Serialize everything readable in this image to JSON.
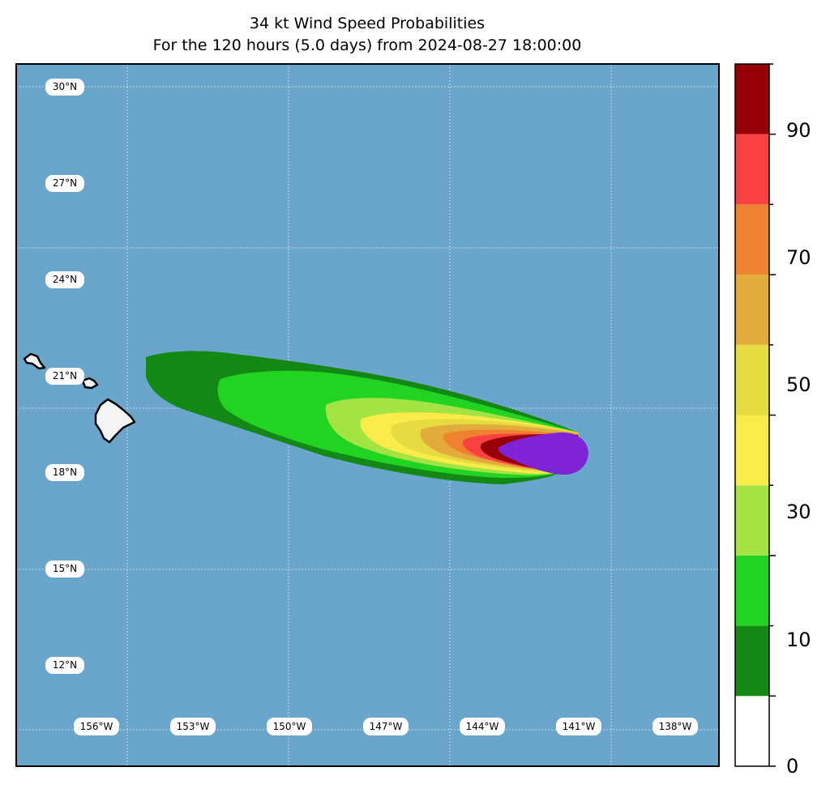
{
  "title_line1": "34 kt Wind Speed Probabilities",
  "title_line2": "For the 120 hours (5.0 days) from 2024-08-27 18:00:00",
  "map": {
    "ocean_color": "#6aa6cc",
    "land_color": "#f2f4f6",
    "lat_labels": [
      "30°N",
      "27°N",
      "24°N",
      "21°N",
      "18°N",
      "15°N",
      "12°N"
    ],
    "lon_labels": [
      "156°W",
      "153°W",
      "150°W",
      "147°W",
      "144°W",
      "141°W",
      "138°W"
    ]
  },
  "colorbar": {
    "tick_labels": [
      "0",
      "10",
      "30",
      "50",
      "70",
      "90"
    ],
    "levels": [
      0,
      10,
      20,
      30,
      40,
      50,
      60,
      70,
      80,
      90,
      100
    ],
    "colors": [
      "#ffffff",
      "#148815",
      "#22d422",
      "#a3e344",
      "#f9eb48",
      "#e6db42",
      "#e3ab3c",
      "#ee8231",
      "#f94141",
      "#970004",
      "#7f23d9"
    ]
  }
}
